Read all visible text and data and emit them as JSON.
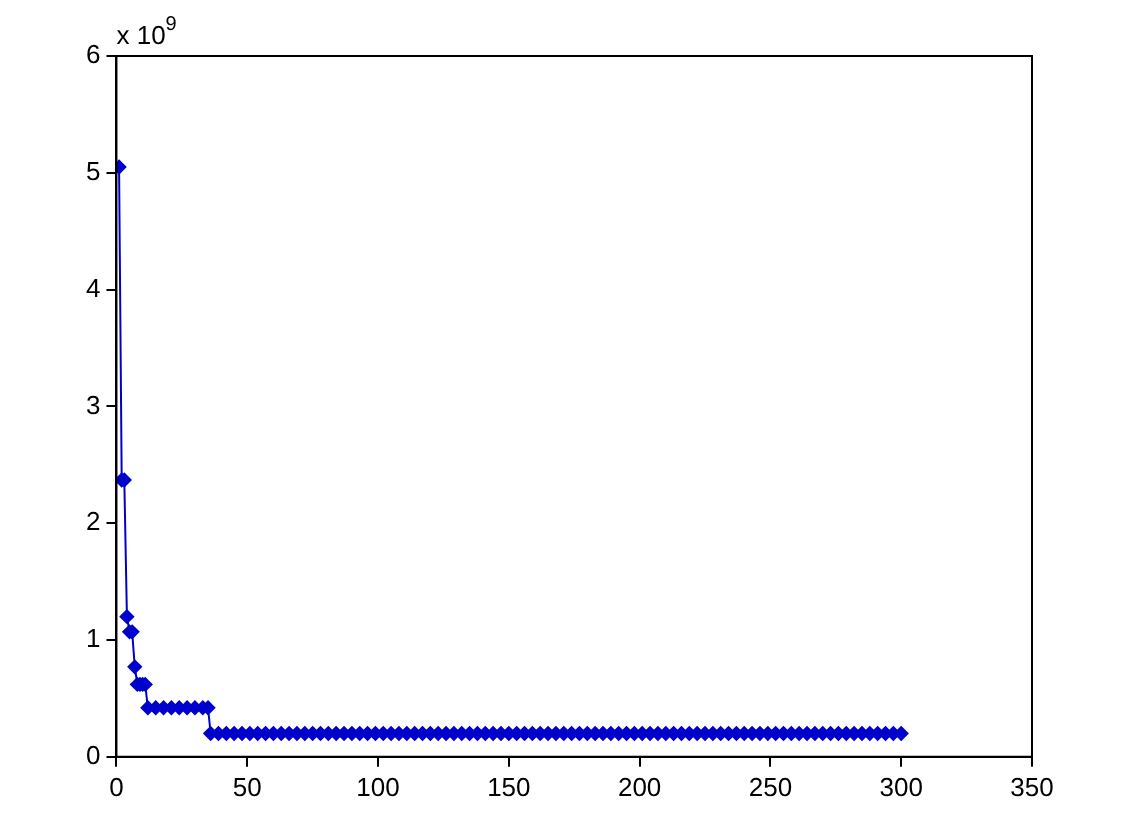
{
  "chart_data": {
    "type": "line",
    "annotations": [
      "x 10$^{9}$"
    ],
    "x": [
      1,
      2,
      3,
      4,
      5,
      6,
      7,
      8,
      9,
      10,
      11,
      12,
      15,
      18,
      21,
      24,
      27,
      30,
      33,
      35,
      36,
      39,
      42,
      45,
      48,
      51,
      54,
      57,
      60,
      63,
      66,
      69,
      72,
      75,
      78,
      81,
      84,
      87,
      90,
      93,
      96,
      99,
      102,
      105,
      108,
      111,
      114,
      117,
      120,
      123,
      126,
      129,
      132,
      135,
      138,
      141,
      144,
      147,
      150,
      153,
      156,
      159,
      162,
      165,
      168,
      171,
      174,
      177,
      180,
      183,
      186,
      189,
      192,
      195,
      198,
      201,
      204,
      207,
      210,
      213,
      216,
      219,
      222,
      225,
      228,
      231,
      234,
      237,
      240,
      243,
      246,
      249,
      252,
      255,
      258,
      261,
      264,
      267,
      270,
      273,
      276,
      279,
      282,
      285,
      288,
      291,
      294,
      297,
      300
    ],
    "series": [
      {
        "color": "#0000cc",
        "values": [
          5.05,
          2.37,
          2.37,
          1.2,
          1.07,
          1.07,
          0.77,
          0.62,
          0.62,
          0.62,
          0.62,
          0.42,
          0.42,
          0.42,
          0.42,
          0.42,
          0.42,
          0.42,
          0.42,
          0.42,
          0.2,
          0.2,
          0.2,
          0.2,
          0.2,
          0.2,
          0.2,
          0.2,
          0.2,
          0.2,
          0.2,
          0.2,
          0.2,
          0.2,
          0.2,
          0.2,
          0.2,
          0.2,
          0.2,
          0.2,
          0.2,
          0.2,
          0.2,
          0.2,
          0.2,
          0.2,
          0.2,
          0.2,
          0.2,
          0.2,
          0.2,
          0.2,
          0.2,
          0.2,
          0.2,
          0.2,
          0.2,
          0.2,
          0.2,
          0.2,
          0.2,
          0.2,
          0.2,
          0.2,
          0.2,
          0.2,
          0.2,
          0.2,
          0.2,
          0.2,
          0.2,
          0.2,
          0.2,
          0.2,
          0.2,
          0.2,
          0.2,
          0.2,
          0.2,
          0.2,
          0.2,
          0.2,
          0.2,
          0.2,
          0.2,
          0.2,
          0.2,
          0.2,
          0.2,
          0.2,
          0.2,
          0.2,
          0.2,
          0.2,
          0.2,
          0.2,
          0.2,
          0.2,
          0.2,
          0.2,
          0.2,
          0.2,
          0.2,
          0.2,
          0.2,
          0.2,
          0.2,
          0.2,
          0.2
        ]
      }
    ],
    "xlim": [
      0,
      350
    ],
    "xticks": [
      0,
      50,
      100,
      150,
      200,
      250,
      300,
      350
    ],
    "ylim": [
      0,
      6
    ],
    "yticks": [
      0,
      1,
      2,
      3,
      4,
      5,
      6
    ],
    "grid": false,
    "legend": false,
    "marker": "diamond",
    "line_style": "solid"
  }
}
